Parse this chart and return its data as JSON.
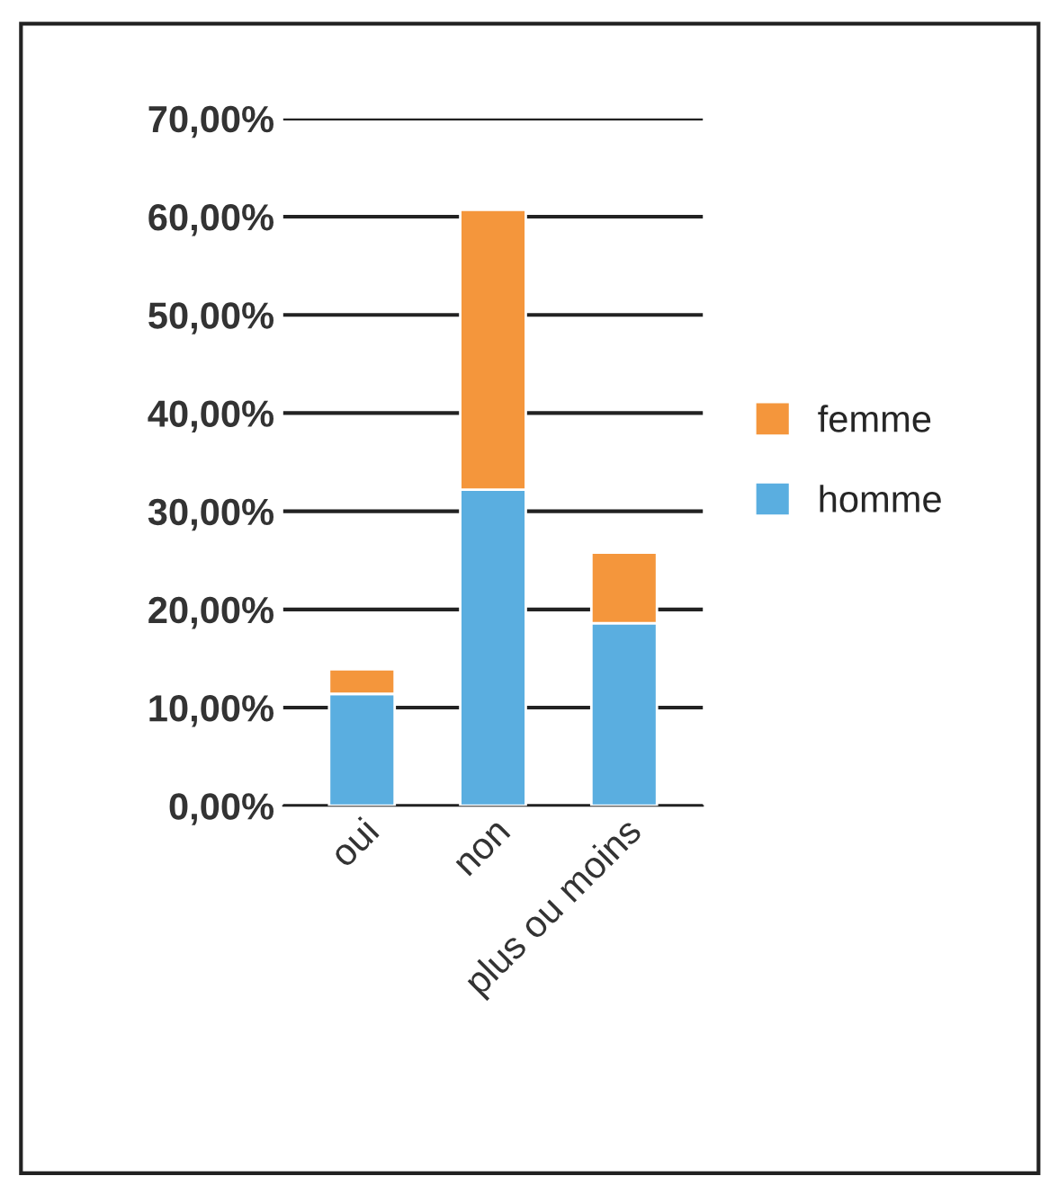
{
  "chart_data": {
    "type": "bar",
    "stacked": true,
    "categories": [
      "oui",
      "non",
      "plus ou moins"
    ],
    "series": [
      {
        "name": "homme",
        "color": "#5aaee0",
        "values": [
          11.4,
          32.2,
          18.6
        ]
      },
      {
        "name": "femme",
        "color": "#f4963c",
        "values": [
          2.5,
          28.5,
          7.2
        ]
      }
    ],
    "ylim": [
      0,
      70
    ],
    "yticks": [
      {
        "value": 0,
        "label": "0,00%"
      },
      {
        "value": 10,
        "label": "10,00%"
      },
      {
        "value": 20,
        "label": "20,00%"
      },
      {
        "value": 30,
        "label": "30,00%"
      },
      {
        "value": 40,
        "label": "40,00%"
      },
      {
        "value": 50,
        "label": "50,00%"
      },
      {
        "value": 60,
        "label": "60,00%"
      },
      {
        "value": 70,
        "label": "70,00%"
      }
    ],
    "grid": "y",
    "legend": "right"
  }
}
